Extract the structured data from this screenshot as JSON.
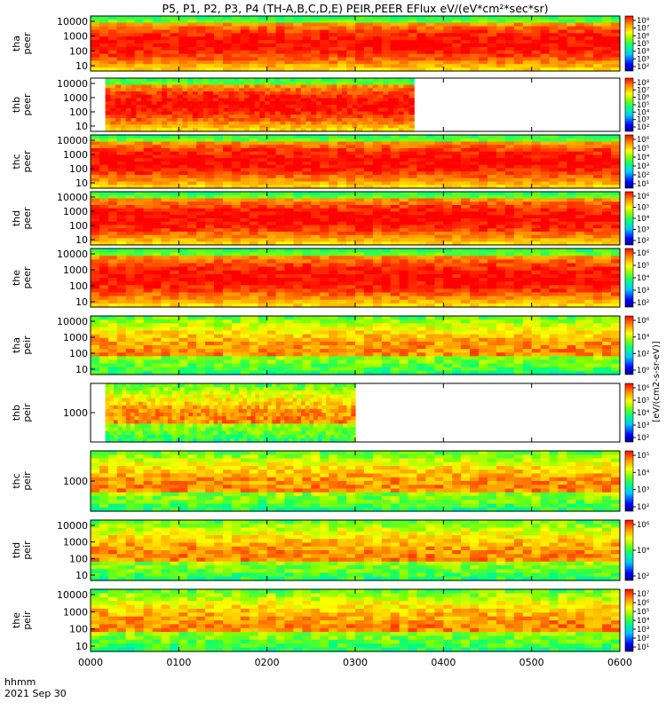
{
  "chart_data": {
    "type": "heatmap",
    "title": "P5, P1, P2, P3, P4 (TH-A,B,C,D,E) PEIR,PEER EFlux eV/(eV*cm²*sec*sr)",
    "xlabel_line1": "hhmm",
    "xlabel_line2": "2021 Sep 30",
    "x_ticks": [
      "0000",
      "0100",
      "0200",
      "0300",
      "0400",
      "0500",
      "0600"
    ],
    "x_range_hhmm": [
      "0000",
      "0600"
    ],
    "y_scale": "log",
    "colorbar_unit": "[eV/(cm2-s-sr-eV)]",
    "colormap": [
      "#00008b",
      "#0000ff",
      "#00c8ff",
      "#00ff80",
      "#80ff00",
      "#ffff00",
      "#ff9900",
      "#ff0000"
    ],
    "panels": [
      {
        "probe": "tha",
        "species": "peer",
        "y_ticks": [
          "10000",
          "1000",
          "100",
          "10"
        ],
        "data_start_hhmm": "0000",
        "data_end_hhmm": "0600",
        "cbar_ticks": [
          "10⁸",
          "10⁷",
          "10⁶",
          "10⁵",
          "10⁴",
          "10³",
          "10²"
        ]
      },
      {
        "probe": "thb",
        "species": "peer",
        "y_ticks": [
          "10000",
          "1000",
          "100",
          "10"
        ],
        "data_start_hhmm": "0010",
        "data_end_hhmm": "0340",
        "cbar_ticks": [
          "10⁸",
          "10⁷",
          "10⁶",
          "10⁵",
          "10⁴",
          "10³",
          "10²"
        ]
      },
      {
        "probe": "thc",
        "species": "peer",
        "y_ticks": [
          "10000",
          "1000",
          "100",
          "10"
        ],
        "data_start_hhmm": "0000",
        "data_end_hhmm": "0600",
        "cbar_ticks": [
          "10⁶",
          "10⁵",
          "10⁴",
          "10³",
          "10²",
          "10¹"
        ]
      },
      {
        "probe": "thd",
        "species": "peer",
        "y_ticks": [
          "10000",
          "1000",
          "100",
          "10"
        ],
        "data_start_hhmm": "0000",
        "data_end_hhmm": "0600",
        "cbar_ticks": [
          "10⁶",
          "10⁵",
          "10⁴",
          "10³",
          "10²"
        ]
      },
      {
        "probe": "the",
        "species": "peer",
        "y_ticks": [
          "10000",
          "1000",
          "100",
          "10"
        ],
        "data_start_hhmm": "0000",
        "data_end_hhmm": "0600",
        "cbar_ticks": [
          "10⁶",
          "10⁵",
          "10⁴",
          "10³",
          "10²"
        ]
      },
      {
        "probe": "tha",
        "species": "peir",
        "y_ticks": [
          "10000",
          "1000",
          "100",
          "10"
        ],
        "data_start_hhmm": "0000",
        "data_end_hhmm": "0600",
        "cbar_ticks": [
          "10⁶",
          "10⁴",
          "10²",
          "10⁰"
        ]
      },
      {
        "probe": "thb",
        "species": "peir",
        "y_ticks": [
          "1000"
        ],
        "data_start_hhmm": "0010",
        "data_end_hhmm": "0300",
        "cbar_ticks": [
          "10⁶",
          "10⁵",
          "10⁴",
          "10³",
          "10²"
        ]
      },
      {
        "probe": "thc",
        "species": "peir",
        "y_ticks": [
          "1000"
        ],
        "data_start_hhmm": "0000",
        "data_end_hhmm": "0600",
        "cbar_ticks": [
          "10⁵",
          "10⁴",
          "10³",
          "10²"
        ]
      },
      {
        "probe": "thd",
        "species": "peir",
        "y_ticks": [
          "10000",
          "1000",
          "100",
          "10"
        ],
        "data_start_hhmm": "0000",
        "data_end_hhmm": "0600",
        "cbar_ticks": [
          "10⁶",
          "10⁴",
          "10²"
        ]
      },
      {
        "probe": "the",
        "species": "peir",
        "y_ticks": [
          "10000",
          "1000",
          "100",
          "10"
        ],
        "data_start_hhmm": "0000",
        "data_end_hhmm": "0600",
        "cbar_ticks": [
          "10⁷",
          "10⁶",
          "10⁵",
          "10⁴",
          "10³",
          "10²",
          "10¹"
        ]
      }
    ]
  }
}
